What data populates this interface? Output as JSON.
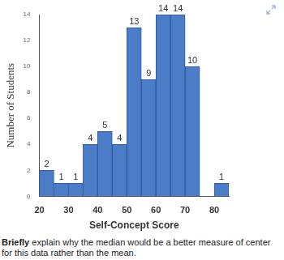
{
  "chart_data": {
    "type": "histogram",
    "bins": [
      20,
      25,
      30,
      35,
      40,
      45,
      50,
      55,
      60,
      65,
      70,
      75,
      80,
      85
    ],
    "values": [
      2,
      1,
      1,
      4,
      5,
      4,
      13,
      9,
      14,
      14,
      10,
      0,
      1
    ],
    "value_labels": [
      "2",
      "1",
      "1",
      "4",
      "5",
      "4",
      "13",
      "9",
      "14",
      "14",
      "10",
      null,
      "1"
    ],
    "color": "#4a7cc7",
    "xlabel": "Self-Concept Score",
    "ylabel": "Number of Students",
    "xlim": [
      20,
      85
    ],
    "ylim": [
      0,
      14
    ],
    "xticks": [
      20,
      30,
      40,
      50,
      60,
      70,
      80
    ],
    "yticks": [
      0,
      2,
      4,
      6,
      8,
      10,
      12,
      14
    ],
    "grid": false,
    "data_labels": true
  },
  "question": {
    "emphasis": "Briefly",
    "text": "explain why the median would be a better measure of center for this data rather than the mean."
  }
}
